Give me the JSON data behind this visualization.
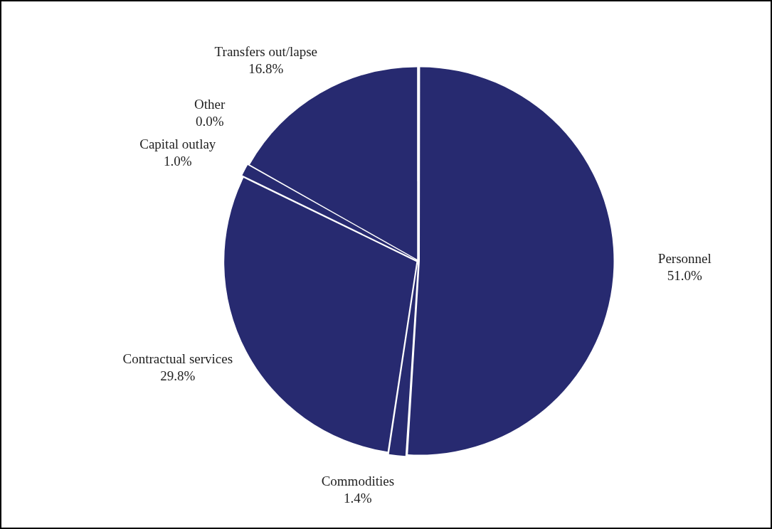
{
  "chart_data": {
    "type": "pie",
    "categories": [
      "Personnel",
      "Commodities",
      "Contractual services",
      "Capital outlay",
      "Other",
      "Transfers out/lapse"
    ],
    "values": [
      51.0,
      1.4,
      29.8,
      1.0,
      0.0,
      16.8
    ],
    "colors": [
      "#272a70",
      "#272a70",
      "#272a70",
      "#272a70",
      "#272a70",
      "#272a70"
    ],
    "value_labels": [
      "51.0%",
      "1.4%",
      "29.8%",
      "1.0%",
      "0.0%",
      "16.8%"
    ],
    "legend": false
  }
}
